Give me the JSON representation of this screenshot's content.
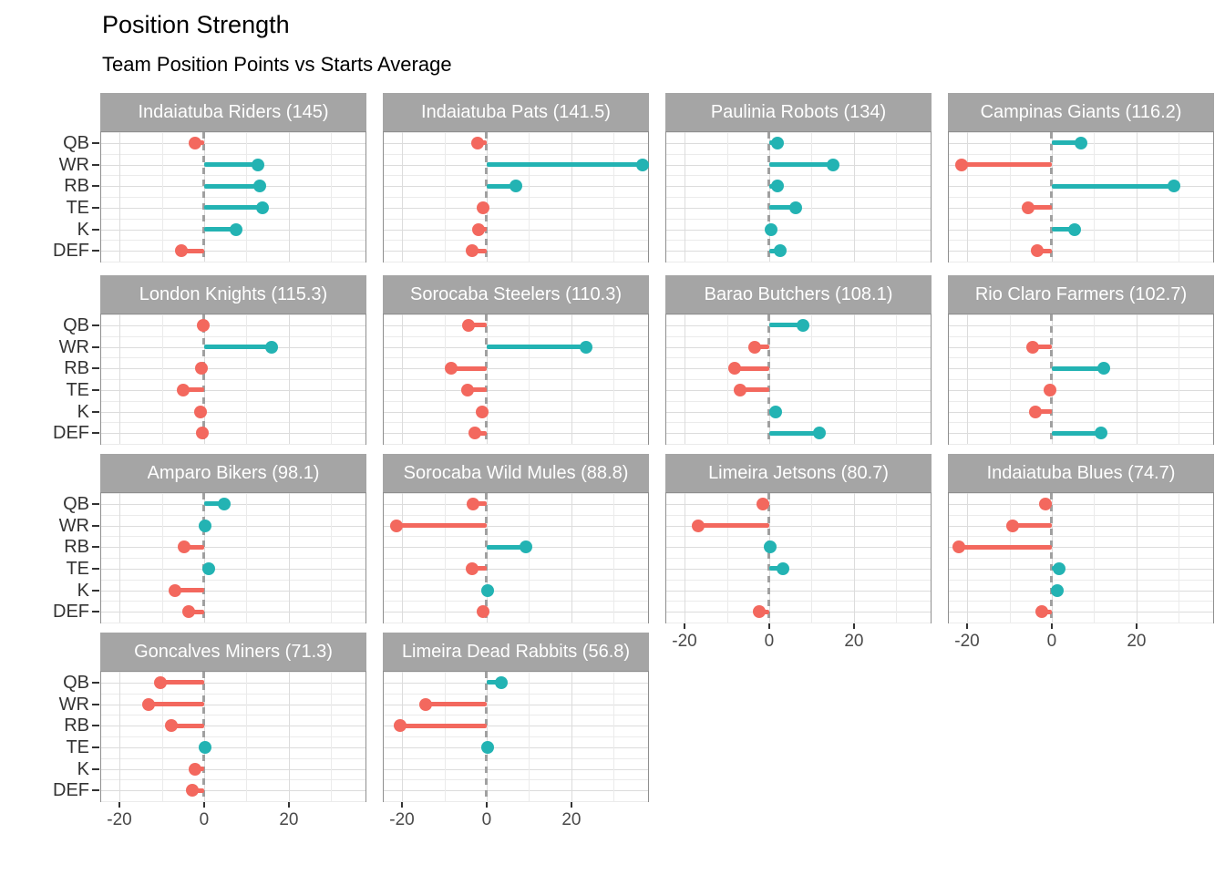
{
  "title": "Position Strength",
  "subtitle": "Team Position Points vs Starts Average",
  "chart_data": {
    "type": "lollipop",
    "layout": "small-multiples-4-columns",
    "positions": [
      "QB",
      "WR",
      "RB",
      "TE",
      "K",
      "DEF"
    ],
    "x_ticks": [
      -20,
      0,
      20
    ],
    "x_tick_labels": [
      "-20",
      "0",
      "20"
    ],
    "x_range": [
      -24.3,
      38.1
    ],
    "x_gridlines": [
      -20,
      -10,
      0,
      10,
      20,
      30
    ],
    "zero_reference_line": 0,
    "legend": "none",
    "colors": {
      "positive": "#23b3b3",
      "negative": "#f3685e",
      "strip_bg": "#a5a5a5",
      "strip_text": "#ffffff",
      "zero_line": "#a0a0a0",
      "grid_major": "#dcdcdc",
      "grid_minor": "#ebebeb",
      "panel_border": "#8f8f8f",
      "axis_text": "#4a4a4a"
    },
    "panels": [
      {
        "label": "Indaiatuba Riders (145)",
        "values": [
          -2.2,
          12.7,
          13.2,
          13.8,
          7.5,
          -5.3
        ]
      },
      {
        "label": "Indaiatuba Pats (141.5)",
        "values": [
          -2.2,
          36.9,
          6.8,
          -0.8,
          -2.0,
          -3.5
        ]
      },
      {
        "label": "Paulinia Robots (134)",
        "values": [
          2.0,
          15.0,
          2.0,
          6.2,
          0.5,
          2.6
        ]
      },
      {
        "label": "Campinas Giants (116.2)",
        "values": [
          6.8,
          -21.3,
          28.8,
          -5.5,
          5.4,
          -3.4
        ]
      },
      {
        "label": "London Knights (115.3)",
        "values": [
          -0.3,
          16.0,
          -0.6,
          -5.0,
          -0.8,
          -0.4
        ]
      },
      {
        "label": "Sorocaba Steelers (110.3)",
        "values": [
          -4.2,
          23.5,
          -8.4,
          -4.6,
          -1.1,
          -2.9
        ]
      },
      {
        "label": "Barao Butchers (108.1)",
        "values": [
          7.9,
          -3.5,
          -8.2,
          -6.8,
          1.5,
          11.9
        ]
      },
      {
        "label": "Rio Claro Farmers (102.7)",
        "values": [
          null,
          -4.5,
          12.2,
          -0.4,
          -3.9,
          11.7
        ]
      },
      {
        "label": "Amparo Bikers (98.1)",
        "values": [
          4.7,
          0.3,
          -4.7,
          1.1,
          -6.9,
          -3.7
        ]
      },
      {
        "label": "Sorocaba Wild Mules (88.8)",
        "values": [
          -3.2,
          -21.3,
          9.2,
          -3.5,
          0.3,
          -0.8
        ]
      },
      {
        "label": "Limeira Jetsons (80.7)",
        "values": [
          -1.5,
          -16.7,
          0.3,
          3.3,
          null,
          -2.4
        ]
      },
      {
        "label": "Indaiatuba Blues (74.7)",
        "values": [
          -1.5,
          -9.2,
          -22.0,
          1.7,
          1.3,
          -2.4
        ]
      },
      {
        "label": "Goncalves Miners (71.3)",
        "values": [
          -10.3,
          -13.1,
          -7.7,
          0.3,
          -2.1,
          -2.8
        ]
      },
      {
        "label": "Limeira Dead Rabbits (56.8)",
        "values": [
          3.4,
          -14.5,
          -20.5,
          0.3,
          null,
          null
        ]
      }
    ]
  }
}
